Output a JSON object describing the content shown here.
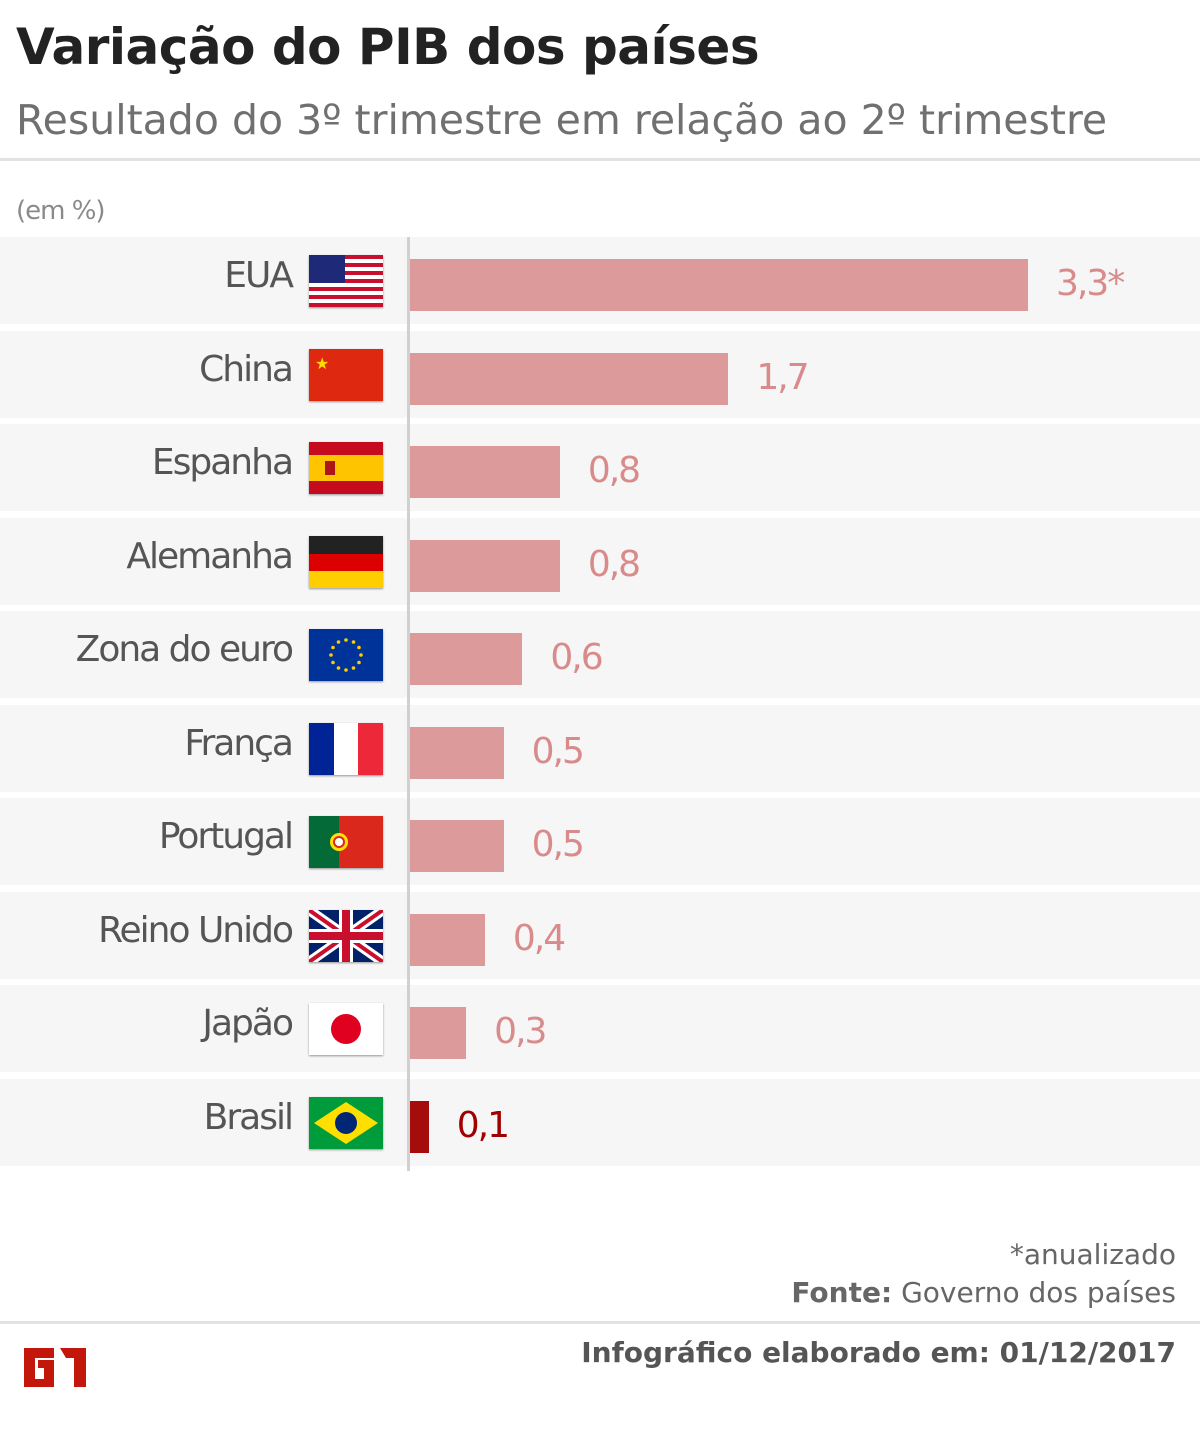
{
  "header": {
    "title": "Variação do PIB dos países",
    "subtitle": "Resultado do 3º trimestre em relação ao 2º trimestre"
  },
  "chart_data": {
    "type": "bar",
    "orientation": "horizontal",
    "unit_label": "(em %)",
    "categories": [
      "EUA",
      "China",
      "Espanha",
      "Alemanha",
      "Zona do euro",
      "França",
      "Portugal",
      "Reino Unido",
      "Japão",
      "Brasil"
    ],
    "values": [
      3.3,
      1.7,
      0.8,
      0.8,
      0.6,
      0.5,
      0.5,
      0.4,
      0.3,
      0.1
    ],
    "data_labels": [
      "3,3*",
      "1,7",
      "0,8",
      "0,8",
      "0,6",
      "0,5",
      "0,5",
      "0,4",
      "0,3",
      "0,1"
    ],
    "flags": [
      "us-flag",
      "china-flag",
      "spain-flag",
      "germany-flag",
      "eu-flag",
      "france-flag",
      "portugal-flag",
      "uk-flag",
      "japan-flag",
      "brazil-flag"
    ],
    "colors": {
      "bar": "#dc9a9a",
      "label": "#d98b8b",
      "highlight_bar": "#a50d0d",
      "highlight_label": "#a00000"
    },
    "highlight": "Brasil",
    "grid": false
  },
  "footer": {
    "note": "*anualizado",
    "source_label": "Fonte:",
    "source": "Governo dos países",
    "date_line": "Infográfico elaborado em: 01/12/2017",
    "logo": "G1"
  }
}
